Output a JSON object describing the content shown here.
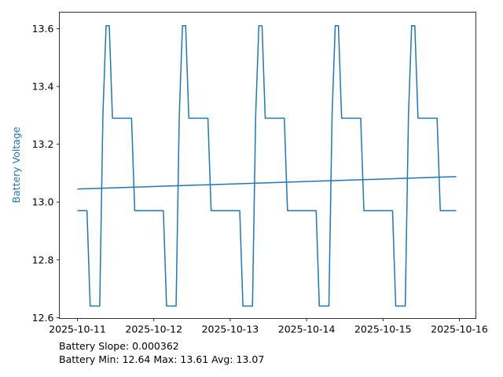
{
  "chart_data": {
    "type": "line",
    "title": "",
    "xlabel": "",
    "ylabel": "Battery Voltage",
    "ylabel_color": "#1f77b4",
    "line_color": "#1f77b4",
    "grid": false,
    "ylim": [
      12.597,
      13.657
    ],
    "xlim": [
      "2025-10-10T18:19",
      "2025-10-16T05:11"
    ],
    "x_ticks": [
      "2025-10-11",
      "2025-10-12",
      "2025-10-13",
      "2025-10-14",
      "2025-10-15",
      "2025-10-16"
    ],
    "y_ticks": [
      "12.6",
      "12.8",
      "13.0",
      "13.2",
      "13.4",
      "13.6"
    ],
    "series": [
      {
        "x": [
          "2025-10-11T00",
          "2025-10-11T01",
          "2025-10-11T02",
          "2025-10-11T03",
          "2025-10-11T04",
          "2025-10-11T05",
          "2025-10-11T06",
          "2025-10-11T07",
          "2025-10-11T08",
          "2025-10-11T09",
          "2025-10-11T10",
          "2025-10-11T11",
          "2025-10-11T12",
          "2025-10-11T13",
          "2025-10-11T14",
          "2025-10-11T15",
          "2025-10-11T16",
          "2025-10-11T17",
          "2025-10-11T18",
          "2025-10-11T19",
          "2025-10-11T20",
          "2025-10-11T21",
          "2025-10-11T22",
          "2025-10-11T23",
          "2025-10-12T00",
          "2025-10-12T01",
          "2025-10-12T02",
          "2025-10-12T03",
          "2025-10-12T04",
          "2025-10-12T05",
          "2025-10-12T06",
          "2025-10-12T07",
          "2025-10-12T08",
          "2025-10-12T09",
          "2025-10-12T10",
          "2025-10-12T11",
          "2025-10-12T12",
          "2025-10-12T13",
          "2025-10-12T14",
          "2025-10-12T15",
          "2025-10-12T16",
          "2025-10-12T17",
          "2025-10-12T18",
          "2025-10-12T19",
          "2025-10-12T20",
          "2025-10-12T21",
          "2025-10-12T22",
          "2025-10-12T23",
          "2025-10-13T00",
          "2025-10-13T01",
          "2025-10-13T02",
          "2025-10-13T03",
          "2025-10-13T04",
          "2025-10-13T05",
          "2025-10-13T06",
          "2025-10-13T07",
          "2025-10-13T08",
          "2025-10-13T09",
          "2025-10-13T10",
          "2025-10-13T11",
          "2025-10-13T12",
          "2025-10-13T13",
          "2025-10-13T14",
          "2025-10-13T15",
          "2025-10-13T16",
          "2025-10-13T17",
          "2025-10-13T18",
          "2025-10-13T19",
          "2025-10-13T20",
          "2025-10-13T21",
          "2025-10-13T22",
          "2025-10-13T23",
          "2025-10-14T00",
          "2025-10-14T01",
          "2025-10-14T02",
          "2025-10-14T03",
          "2025-10-14T04",
          "2025-10-14T05",
          "2025-10-14T06",
          "2025-10-14T07",
          "2025-10-14T08",
          "2025-10-14T09",
          "2025-10-14T10",
          "2025-10-14T11",
          "2025-10-14T12",
          "2025-10-14T13",
          "2025-10-14T14",
          "2025-10-14T15",
          "2025-10-14T16",
          "2025-10-14T17",
          "2025-10-14T18",
          "2025-10-14T19",
          "2025-10-14T20",
          "2025-10-14T21",
          "2025-10-14T22",
          "2025-10-14T23",
          "2025-10-15T00",
          "2025-10-15T01",
          "2025-10-15T02",
          "2025-10-15T03",
          "2025-10-15T04",
          "2025-10-15T05",
          "2025-10-15T06",
          "2025-10-15T07",
          "2025-10-15T08",
          "2025-10-15T09",
          "2025-10-15T10",
          "2025-10-15T11",
          "2025-10-15T12",
          "2025-10-15T13",
          "2025-10-15T14",
          "2025-10-15T15",
          "2025-10-15T16",
          "2025-10-15T17",
          "2025-10-15T18",
          "2025-10-15T19",
          "2025-10-15T20",
          "2025-10-15T21",
          "2025-10-15T22",
          "2025-10-15T23"
        ],
        "y": [
          12.97,
          12.97,
          12.97,
          12.97,
          12.64,
          12.64,
          12.64,
          12.64,
          13.3,
          13.61,
          13.61,
          13.29,
          13.29,
          13.29,
          13.29,
          13.29,
          13.29,
          13.29,
          12.97,
          12.97,
          12.97,
          12.97,
          12.97,
          12.97,
          12.97,
          12.97,
          12.97,
          12.97,
          12.64,
          12.64,
          12.64,
          12.64,
          13.3,
          13.61,
          13.61,
          13.29,
          13.29,
          13.29,
          13.29,
          13.29,
          13.29,
          13.29,
          12.97,
          12.97,
          12.97,
          12.97,
          12.97,
          12.97,
          12.97,
          12.97,
          12.97,
          12.97,
          12.64,
          12.64,
          12.64,
          12.64,
          13.3,
          13.61,
          13.61,
          13.29,
          13.29,
          13.29,
          13.29,
          13.29,
          13.29,
          13.29,
          12.97,
          12.97,
          12.97,
          12.97,
          12.97,
          12.97,
          12.97,
          12.97,
          12.97,
          12.97,
          12.64,
          12.64,
          12.64,
          12.64,
          13.3,
          13.61,
          13.61,
          13.29,
          13.29,
          13.29,
          13.29,
          13.29,
          13.29,
          13.29,
          12.97,
          12.97,
          12.97,
          12.97,
          12.97,
          12.97,
          12.97,
          12.97,
          12.97,
          12.97,
          12.64,
          12.64,
          12.64,
          12.64,
          13.3,
          13.61,
          13.61,
          13.29,
          13.29,
          13.29,
          13.29,
          13.29,
          13.29,
          13.29,
          12.97,
          12.97,
          12.97,
          12.97,
          12.97,
          12.97
        ]
      },
      {
        "kind": "trend",
        "x": [
          "2025-10-11T00",
          "2025-10-15T23"
        ],
        "y": [
          13.045,
          13.088
        ]
      }
    ],
    "annotations": {
      "slope": "Battery Slope: 0.000362",
      "stats": "Battery Min: 12.64 Max: 13.61 Avg: 13.07"
    }
  }
}
